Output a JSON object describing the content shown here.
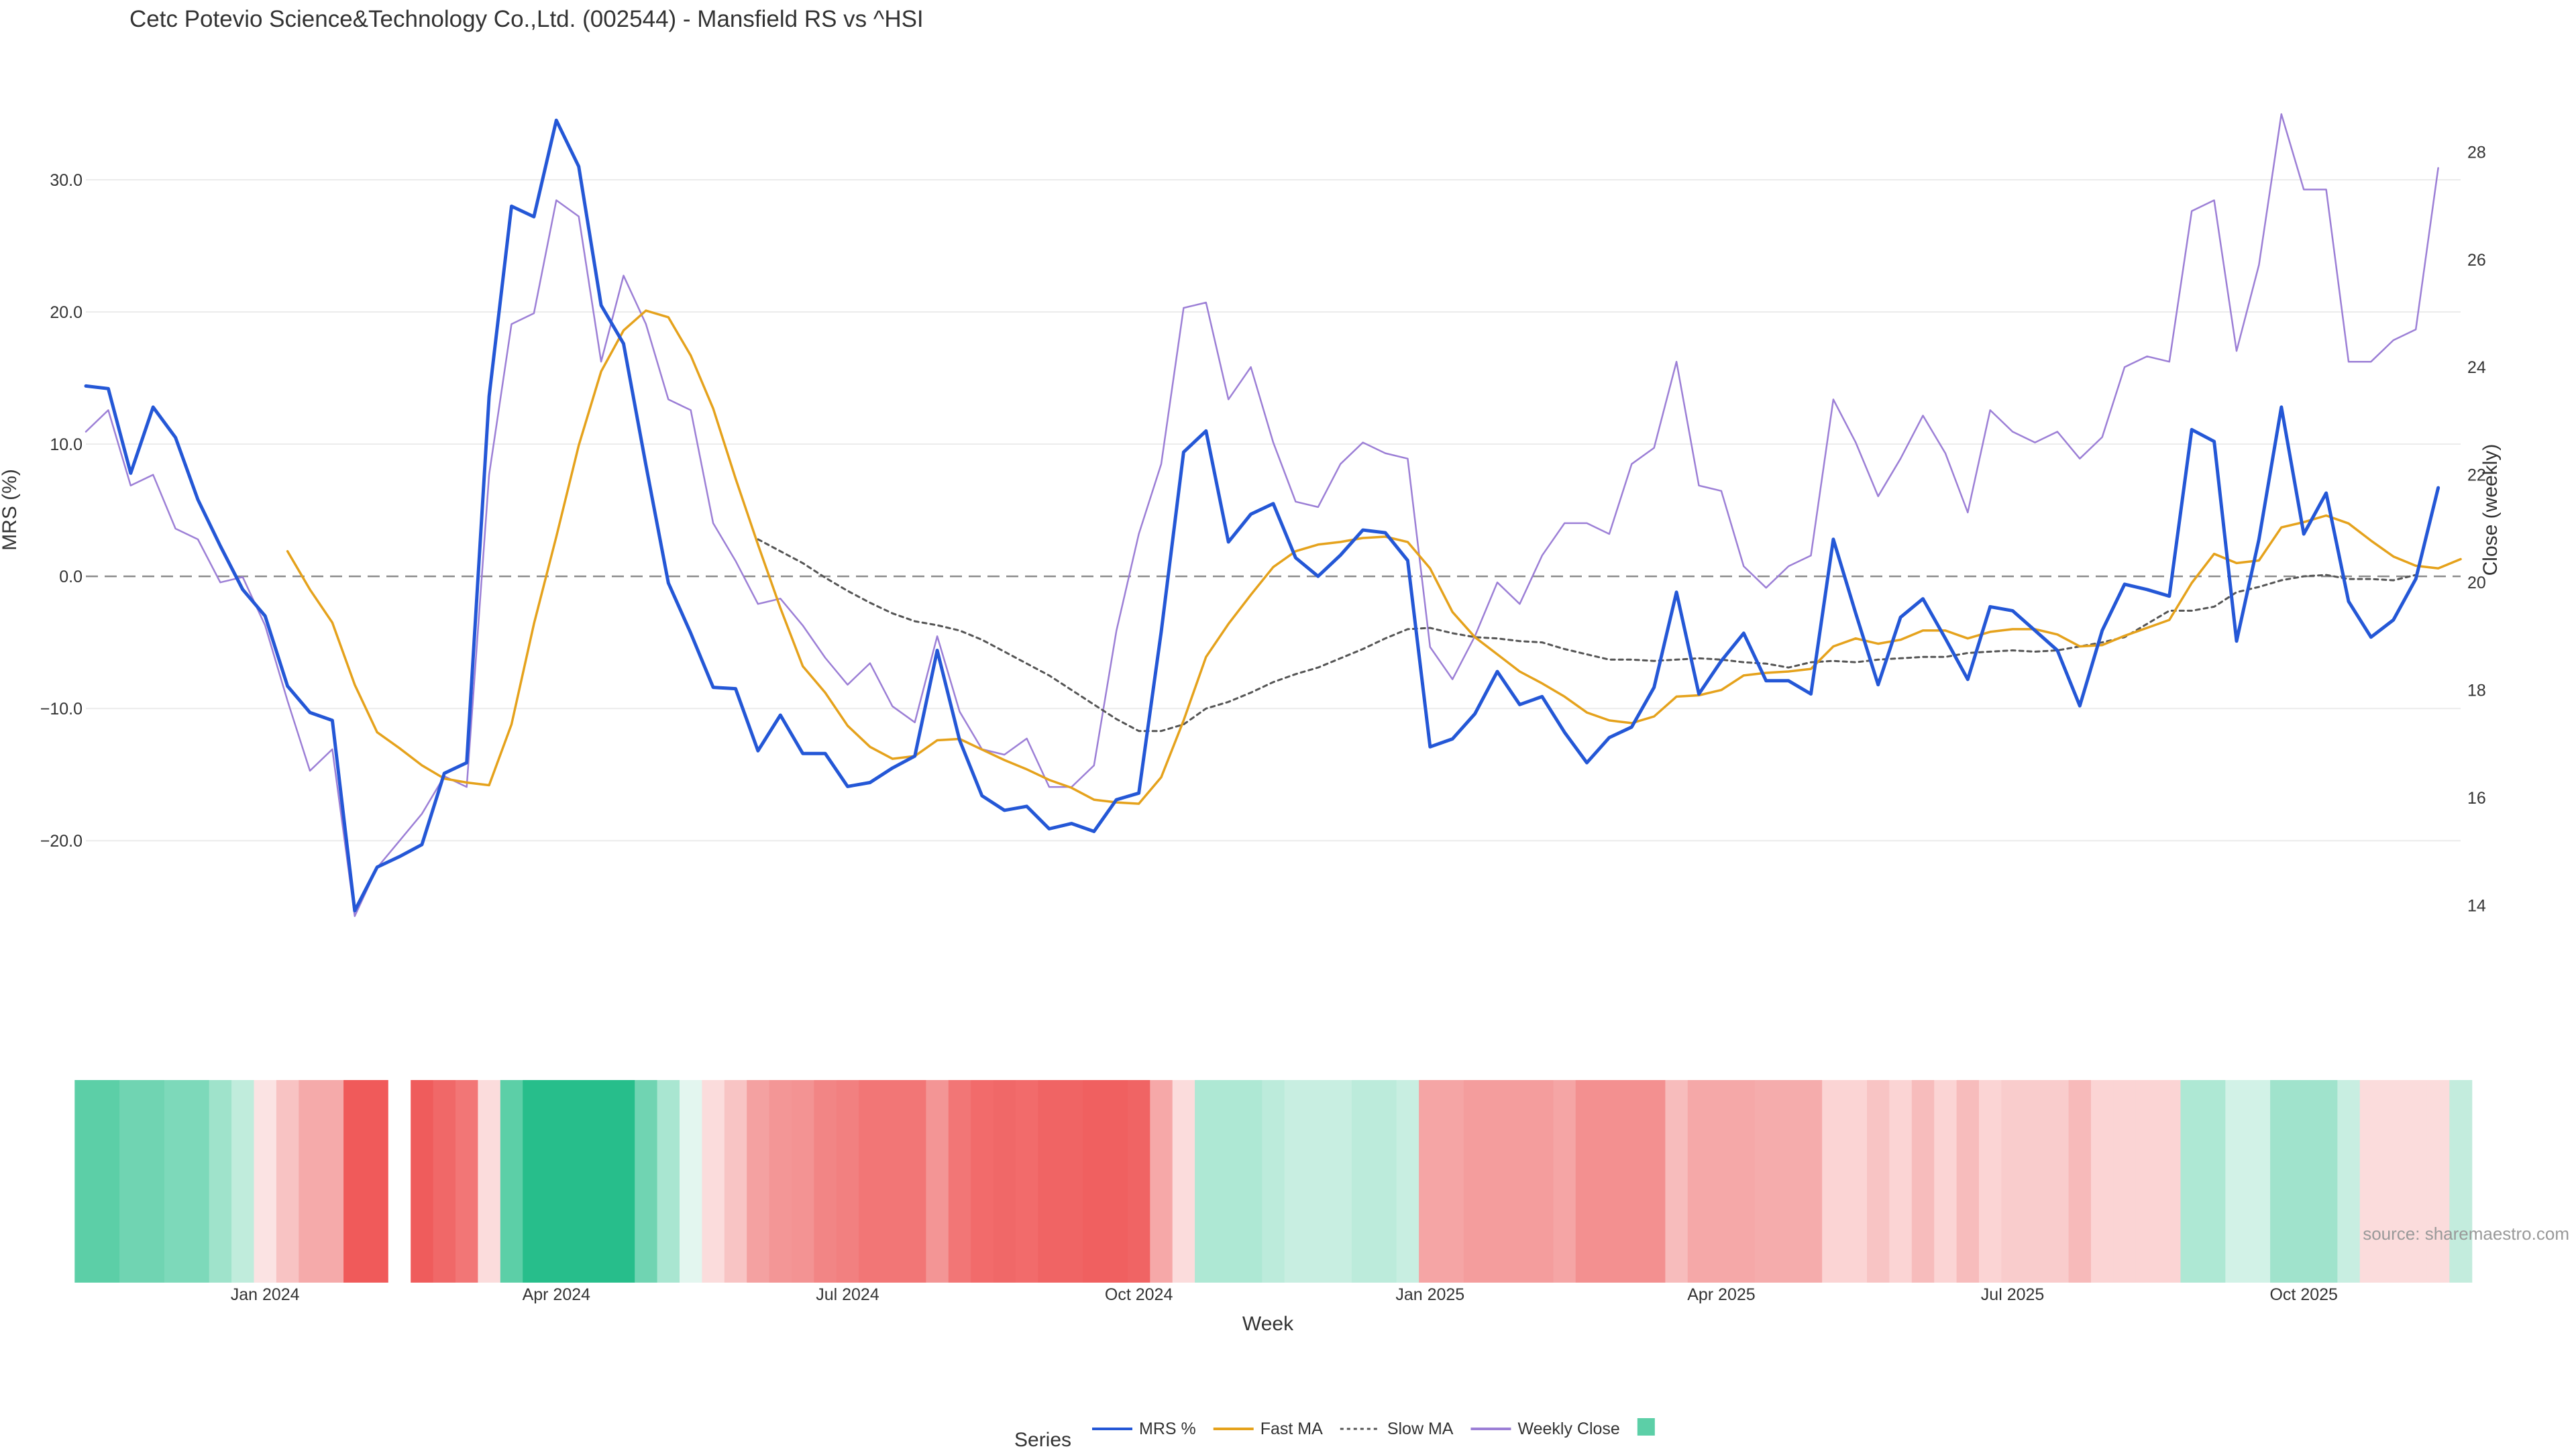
{
  "chart_data": {
    "type": "line",
    "title": "Cetc Potevio Science&Technology Co.,Ltd. (002544) - Mansfield RS vs ^HSI",
    "xlabel": "Week",
    "ylabel_left": "MRS (%)",
    "ylabel_right": "Close (weekly)",
    "source": "source: sharemaestro.com",
    "legend_title": "Series",
    "legend_position": "bottom-center",
    "legend": [
      {
        "name": "MRS %",
        "color": "#2457d6",
        "style": "solid"
      },
      {
        "name": "Fast MA",
        "color": "#e5a21c",
        "style": "solid"
      },
      {
        "name": "Slow MA",
        "color": "#555555",
        "style": "dotted"
      },
      {
        "name": "Weekly Close",
        "color": "#9c7fd6",
        "style": "solid"
      },
      {
        "name": "",
        "color": "#5ccfa7",
        "style": "swatch"
      }
    ],
    "ylim_left": [
      -31,
      37
    ],
    "ylim_right": [
      12.5,
      29.2
    ],
    "yticks_left": [
      30.0,
      20.0,
      10.0,
      0.0,
      -10.0,
      -20.0
    ],
    "ytick_labels_left": [
      "30.0",
      "20.0",
      "10.0",
      "0.0",
      "−10.0",
      "−20.0"
    ],
    "yticks_right": [
      28,
      26,
      24,
      22,
      20,
      18,
      16,
      14
    ],
    "ytick_labels_right": [
      "28",
      "26",
      "24",
      "22",
      "20",
      "18",
      "16",
      "14"
    ],
    "x_range": [
      0,
      106
    ],
    "x_ticks": [
      8,
      21,
      34,
      47,
      60,
      73,
      86,
      99
    ],
    "x_tick_labels": [
      "Jan 2024",
      "Apr 2024",
      "Jul 2024",
      "Oct 2024",
      "Jan 2025",
      "Apr 2025",
      "Jul 2025",
      "Oct 2025"
    ],
    "zero_line": 0,
    "series": [
      {
        "name": "MRS %",
        "key": "mrs",
        "x_start": 0,
        "values": [
          14.4,
          14.2,
          7.8,
          12.8,
          10.5,
          5.8,
          2.3,
          -1,
          -3,
          -8.3,
          -10.3,
          -10.9,
          -25.3,
          -22,
          -21.2,
          -20.3,
          -14.9,
          -14.1,
          13.6,
          28,
          27.2,
          34.5,
          31,
          20.5,
          17.6,
          8.4,
          -0.5,
          -4.3,
          -8.4,
          -8.5,
          -13.2,
          -10.5,
          -13.4,
          -13.4,
          -15.9,
          -15.6,
          -14.5,
          -13.6,
          -5.6,
          -12.4,
          -16.6,
          -17.7,
          -17.4,
          -19.1,
          -18.7,
          -19.3,
          -16.9,
          -16.4,
          -4.2,
          9.4,
          11,
          2.6,
          4.7,
          5.5,
          1.4,
          0,
          1.6,
          3.5,
          3.3,
          1.2,
          -12.9,
          -12.3,
          -10.4,
          -7.2,
          -9.7,
          -9.1,
          -11.8,
          -14.1,
          -12.2,
          -11.4,
          -8.4,
          -1.2,
          -8.9,
          -6.4,
          -4.3,
          -7.9,
          -7.9,
          -8.9,
          2.8,
          -2.8,
          -8.2,
          -3.1,
          -1.7,
          -4.7,
          -7.8,
          -2.3,
          -2.6,
          -4.1,
          -5.6,
          -9.8,
          -4.1,
          -0.6,
          -1,
          -1.5,
          11.1,
          10.2,
          -4.9,
          2.8,
          12.8,
          3.2,
          6.3,
          -1.9,
          -4.6,
          -3.3,
          -0.2,
          6.7
        ]
      },
      {
        "name": "Fast MA",
        "key": "fast",
        "x_start": 9,
        "values": [
          1.9,
          -1,
          -3.5,
          -8.2,
          -11.8,
          -13,
          -14.3,
          -15.3,
          -15.6,
          -15.8,
          -11.2,
          -3.6,
          3,
          9.9,
          15.5,
          18.6,
          20.1,
          19.6,
          16.7,
          12.7,
          7.4,
          2.4,
          -2.4,
          -6.8,
          -8.8,
          -11.3,
          -12.9,
          -13.8,
          -13.6,
          -12.4,
          -12.3,
          -13.1,
          -13.9,
          -14.6,
          -15.4,
          -16,
          -16.9,
          -17.1,
          -17.2,
          -15.2,
          -10.9,
          -6.1,
          -3.6,
          -1.4,
          0.7,
          1.9,
          2.4,
          2.6,
          2.9,
          3,
          2.6,
          0.6,
          -2.7,
          -4.6,
          -5.9,
          -7.2,
          -8.1,
          -9.1,
          -10.3,
          -10.9,
          -11.1,
          -10.6,
          -9.1,
          -9,
          -8.6,
          -7.5,
          -7.3,
          -7.2,
          -7,
          -5.3,
          -4.7,
          -5.1,
          -4.8,
          -4.1,
          -4.1,
          -4.7,
          -4.2,
          -4,
          -4,
          -4.4,
          -5.3,
          -5.2,
          -4.5,
          -3.9,
          -3.3,
          -0.5,
          1.7,
          1,
          1.2,
          3.7,
          4.1,
          4.6,
          4,
          2.7,
          1.5,
          0.8,
          0.6,
          1.3
        ]
      },
      {
        "name": "Slow MA",
        "key": "slow",
        "x_start": 30,
        "values": [
          2.8,
          1.9,
          1,
          -0.1,
          -1.1,
          -2,
          -2.8,
          -3.4,
          -3.7,
          -4.1,
          -4.8,
          -5.7,
          -6.6,
          -7.5,
          -8.6,
          -9.7,
          -10.8,
          -11.7,
          -11.7,
          -11.2,
          -10,
          -9.5,
          -8.8,
          -8,
          -7.4,
          -6.9,
          -6.2,
          -5.5,
          -4.7,
          -4,
          -3.9,
          -4.3,
          -4.6,
          -4.7,
          -4.9,
          -5,
          -5.5,
          -5.9,
          -6.3,
          -6.3,
          -6.4,
          -6.3,
          -6.2,
          -6.3,
          -6.5,
          -6.6,
          -6.9,
          -6.5,
          -6.4,
          -6.5,
          -6.3,
          -6.2,
          -6.1,
          -6.1,
          -5.8,
          -5.7,
          -5.6,
          -5.7,
          -5.6,
          -5.3,
          -5,
          -4.6,
          -3.6,
          -2.6,
          -2.6,
          -2.3,
          -1.2,
          -0.8,
          -0.3,
          0,
          0.1,
          -0.2,
          -0.2,
          -0.3,
          0.1
        ]
      },
      {
        "name": "Weekly Close",
        "key": "close",
        "axis": "right",
        "x_start": 0,
        "values": [
          22.8,
          23.2,
          21.8,
          22,
          21,
          20.8,
          20,
          20.1,
          19.2,
          17.8,
          16.5,
          16.9,
          13.8,
          14.7,
          15.2,
          15.7,
          16.4,
          16.2,
          22,
          24.8,
          25,
          27.1,
          26.8,
          24.1,
          25.7,
          24.8,
          23.4,
          23.2,
          21.1,
          20.4,
          19.6,
          19.7,
          19.2,
          18.6,
          18.1,
          18.5,
          17.7,
          17.4,
          19,
          17.6,
          16.9,
          16.8,
          17.1,
          16.2,
          16.2,
          16.6,
          19.1,
          20.9,
          22.2,
          25.1,
          25.2,
          23.4,
          24,
          22.6,
          21.5,
          21.4,
          22.2,
          22.6,
          22.4,
          22.3,
          18.8,
          18.2,
          19,
          20,
          19.6,
          20.5,
          21.1,
          21.1,
          20.9,
          22.2,
          22.5,
          24.1,
          21.8,
          21.7,
          20.3,
          19.9,
          20.3,
          20.5,
          23.4,
          22.6,
          21.6,
          22.3,
          23.1,
          22.4,
          21.3,
          23.2,
          22.8,
          22.6,
          22.8,
          22.3,
          22.7,
          24,
          24.2,
          24.1,
          26.9,
          27.1,
          24.3,
          25.9,
          28.7,
          27.3,
          27.3,
          24.1,
          24.1,
          24.5,
          24.7,
          27.7
        ]
      }
    ],
    "regime_strip": {
      "x_start": 0,
      "cells": [
        "#5ccfa7",
        "#5ccfa7",
        "#70d4b2",
        "#70d4b2",
        "#7dd9ba",
        "#7dd9ba",
        "#9fe3cb",
        "#c0ecdc",
        "#fbe3e3",
        "#f8c3c3",
        "#f5aaaa",
        "#f5aaaa",
        "#f05a5a",
        "#f05a5a",
        "#ffffff",
        "#ef5c5c",
        "#f06868",
        "#f27676",
        "#fbdcdc",
        "#5ccfa7",
        "#27be8b",
        "#27be8b",
        "#27be8b",
        "#27be8b",
        "#27be8b",
        "#70d4b2",
        "#a9e6d1",
        "#e3f6ef",
        "#fbdcdc",
        "#f8c4c4",
        "#f4a1a1",
        "#f39696",
        "#f39393",
        "#f28585",
        "#f28080",
        "#f27676",
        "#f27676",
        "#f27676",
        "#f39595",
        "#f27676",
        "#f26b6b",
        "#f06868",
        "#f26b6b",
        "#f06464",
        "#f06464",
        "#f06060",
        "#f06060",
        "#f06464",
        "#f6a8a8",
        "#fbdcdc",
        "#aee8d4",
        "#aee8d4",
        "#aee8d4",
        "#bcebdb",
        "#c8eee1",
        "#c8eee1",
        "#c8eee1",
        "#bcebdb",
        "#bcebdb",
        "#c8eee1",
        "#f5a5a5",
        "#f5a5a5",
        "#f49d9d",
        "#f49d9d",
        "#f49d9d",
        "#f49d9d",
        "#f5a5a5",
        "#f39090",
        "#f39090",
        "#f39090",
        "#f39090",
        "#f7bcbc",
        "#f5a8a8",
        "#f5a8a8",
        "#f5a8a8",
        "#f5acac",
        "#f5acac",
        "#f5acac",
        "#fbd4d4",
        "#fbd4d4",
        "#f8c4c4",
        "#fbd4d4",
        "#f7bcbc",
        "#fbd4d4",
        "#f7bcbc",
        "#fbd4d4",
        "#f9cccc",
        "#f9cccc",
        "#f9cccc",
        "#f7baba",
        "#fbd4d4",
        "#fbd4d4",
        "#fbd4d4",
        "#fbd4d4",
        "#aee8d4",
        "#aee8d4",
        "#d2f2e7",
        "#d2f2e7",
        "#a0e3cc",
        "#a0e3cc",
        "#a0e3cc",
        "#c8eee1",
        "#fbdcdc",
        "#fbdcdc",
        "#fbdcdc",
        "#fbdcdc",
        "#c3ecdd"
      ]
    }
  }
}
